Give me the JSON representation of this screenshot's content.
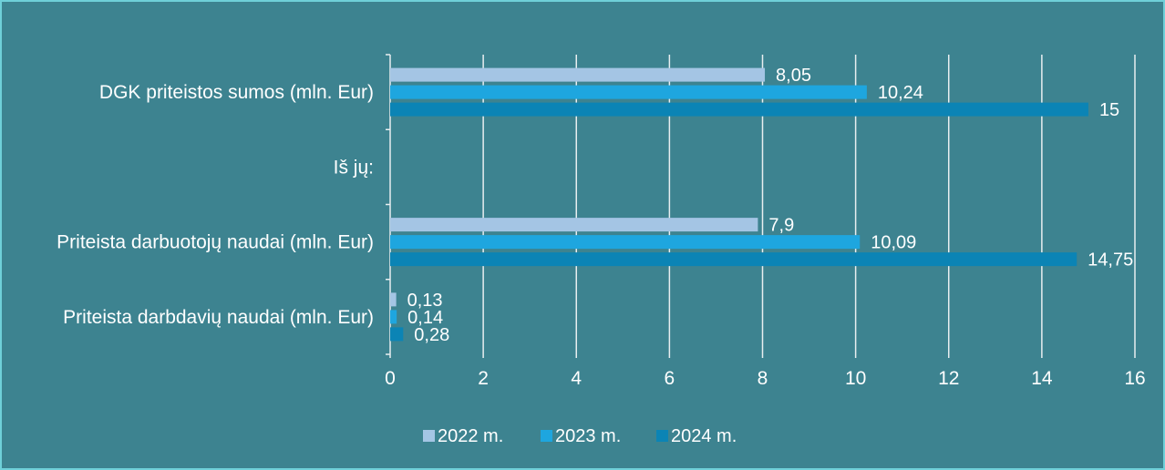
{
  "chart_data": {
    "type": "bar",
    "orientation": "horizontal",
    "categories": [
      "DGK priteistos sumos (mln. Eur)",
      "Iš jų:",
      "Priteista darbuotojų naudai (mln. Eur)",
      "Priteista darbdavių naudai (mln. Eur)"
    ],
    "series": [
      {
        "name": "2022 m.",
        "color": "#a4c5e4",
        "values": [
          8.05,
          null,
          7.9,
          0.13
        ],
        "labels": [
          "8,05",
          "",
          "7,9",
          "0,13"
        ]
      },
      {
        "name": "2023 m.",
        "color": "#1ea6df",
        "values": [
          10.24,
          null,
          10.09,
          0.14
        ],
        "labels": [
          "10,24",
          "",
          "10,09",
          "0,14"
        ]
      },
      {
        "name": "2024 m.",
        "color": "#0b84b5",
        "values": [
          15,
          null,
          14.75,
          0.28
        ],
        "labels": [
          "15",
          "",
          "14,75",
          "0,28"
        ]
      }
    ],
    "xlim": [
      0,
      16
    ],
    "x_ticks": [
      "0",
      "2",
      "4",
      "6",
      "8",
      "10",
      "12",
      "14",
      "16"
    ],
    "grid": "vertical",
    "legend": "bottom-center",
    "background": "#3d8390",
    "gridline_color": "#e8eef0",
    "text_color": "#ffffff"
  }
}
